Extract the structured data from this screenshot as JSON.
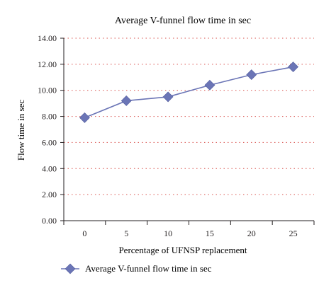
{
  "chart_data": {
    "type": "line",
    "title": "Average V-funnel flow time in sec",
    "xlabel": "Percentage of UFNSP replacement",
    "ylabel": "Flow time in sec",
    "categories": [
      "0",
      "5",
      "10",
      "15",
      "20",
      "25"
    ],
    "y_ticks": [
      "0.00",
      "2.00",
      "4.00",
      "6.00",
      "8.00",
      "10.00",
      "12.00",
      "14.00"
    ],
    "ylim": [
      0,
      14
    ],
    "grid": "horizontal dotted",
    "legend_position": "bottom-left",
    "series": [
      {
        "name": "Average V-funnel flow time in sec",
        "values": [
          7.9,
          9.2,
          9.5,
          10.4,
          11.2,
          11.8
        ],
        "color": "#6b75b6",
        "marker": "diamond"
      }
    ],
    "colors": {
      "grid": "#d9534f",
      "axis": "#231f20",
      "series": "#6b75b6"
    }
  }
}
